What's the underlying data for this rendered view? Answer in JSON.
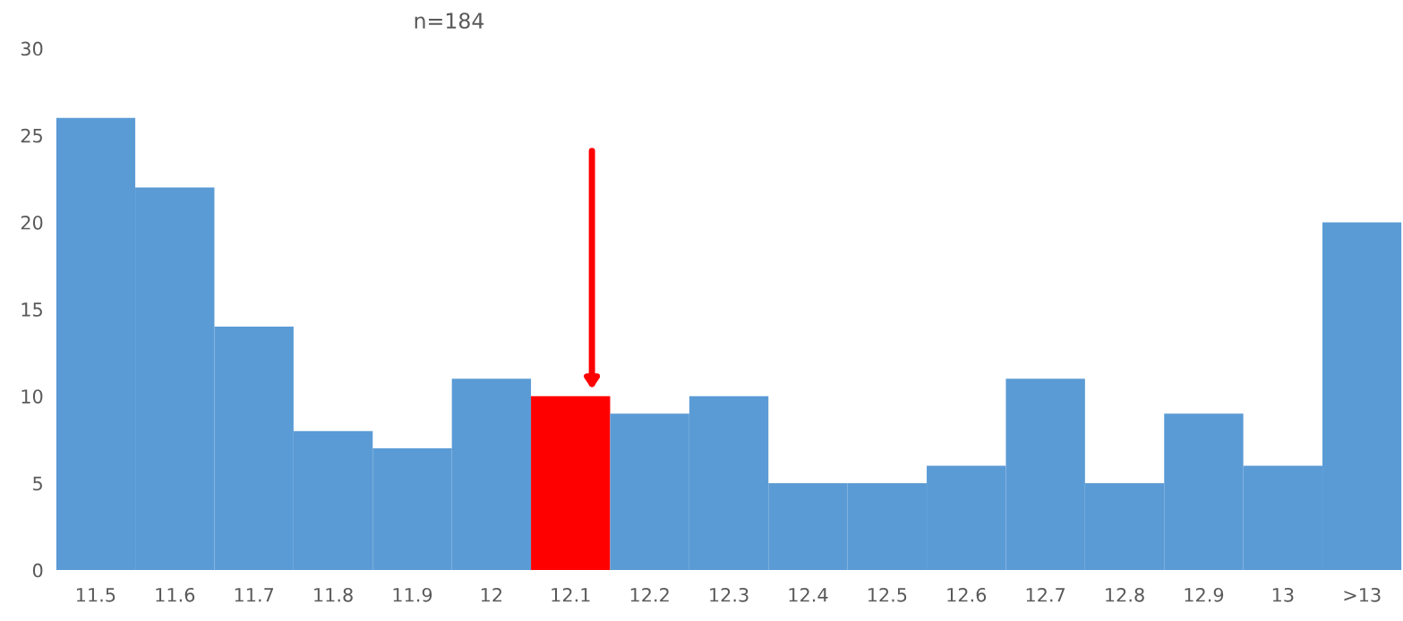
{
  "chart_data": {
    "type": "bar",
    "title": "n=184",
    "categories": [
      "11.5",
      "11.6",
      "11.7",
      "11.8",
      "11.9",
      "12",
      "12.1",
      "12.2",
      "12.3",
      "12.4",
      "12.5",
      "12.6",
      "12.7",
      "12.8",
      "12.9",
      "13",
      ">13"
    ],
    "values": [
      26,
      22,
      14,
      8,
      7,
      11,
      10,
      9,
      10,
      5,
      5,
      6,
      11,
      5,
      9,
      6,
      20
    ],
    "colors": [
      "#5b9bd5",
      "#5b9bd5",
      "#5b9bd5",
      "#5b9bd5",
      "#5b9bd5",
      "#5b9bd5",
      "#ff0000",
      "#5b9bd5",
      "#5b9bd5",
      "#5b9bd5",
      "#5b9bd5",
      "#5b9bd5",
      "#5b9bd5",
      "#5b9bd5",
      "#5b9bd5",
      "#5b9bd5",
      "#5b9bd5"
    ],
    "ylim": [
      0,
      30
    ],
    "yticks": [
      0,
      5,
      10,
      15,
      20,
      25,
      30
    ],
    "grid": false
  }
}
